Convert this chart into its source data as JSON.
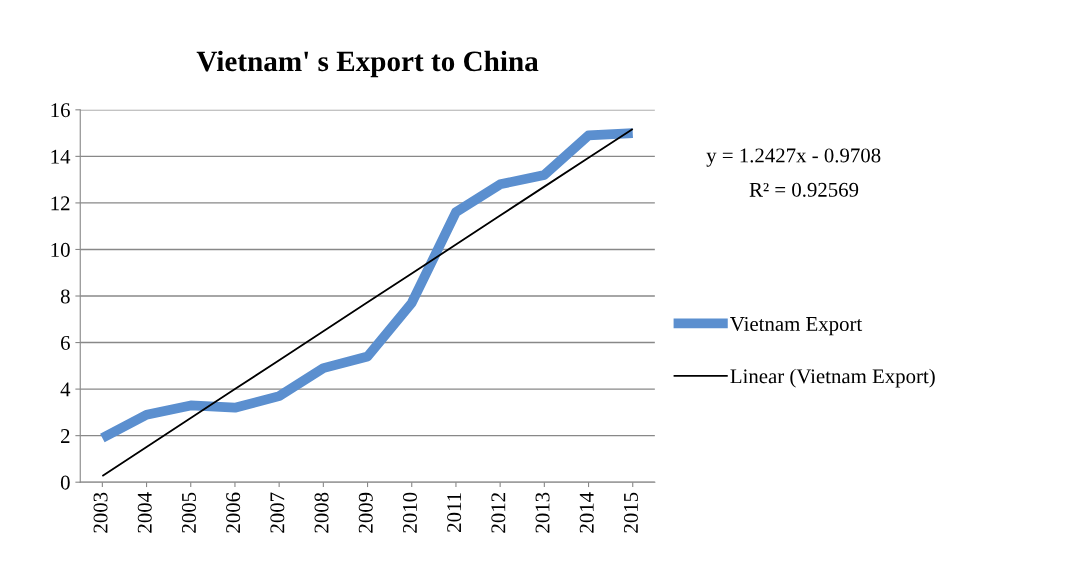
{
  "chart_data": {
    "type": "line",
    "title": "Vietnam' s Export to China",
    "categories": [
      "2003",
      "2004",
      "2005",
      "2006",
      "2007",
      "2008",
      "2009",
      "2010",
      "2011",
      "2012",
      "2013",
      "2014",
      "2015"
    ],
    "series": [
      {
        "name": "Vietnam Export",
        "color": "#5b8fcf",
        "values": [
          1.9,
          2.9,
          3.3,
          3.2,
          3.7,
          4.9,
          5.4,
          7.7,
          11.6,
          12.8,
          13.2,
          14.9,
          15.0
        ]
      },
      {
        "name": "Linear (Vietnam Export)",
        "color": "#000000",
        "values": [
          0.27,
          1.51,
          2.76,
          4.0,
          5.24,
          6.49,
          7.73,
          8.97,
          10.21,
          11.46,
          12.7,
          13.94,
          15.18
        ]
      }
    ],
    "annotations": [
      "y = 1.2427x - 0.9708",
      "R² = 0.92569"
    ],
    "ylim": [
      0,
      16
    ],
    "yticks": [
      0,
      2,
      4,
      6,
      8,
      10,
      12,
      14,
      16
    ],
    "grid": "y",
    "legend": "right",
    "marker": "none",
    "line_style": "solid"
  }
}
